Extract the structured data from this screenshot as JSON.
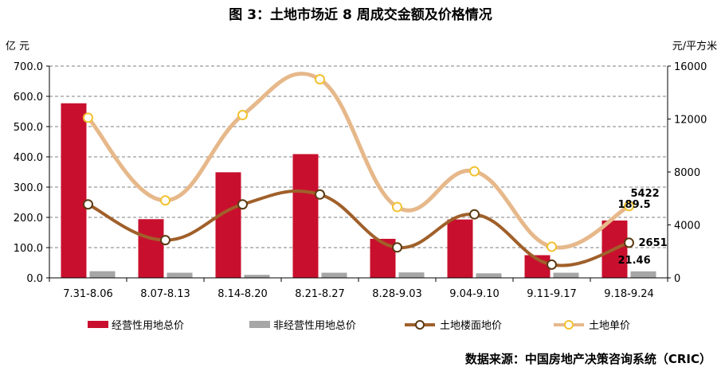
{
  "title": "图 3：土地市场近 8 周成交金额及价格情况",
  "source": "数据来源：中国房地产决策咨询系统（CRIC）",
  "chart_data": {
    "type": "bar",
    "categories": [
      "7.31-8.06",
      "8.07-8.13",
      "8.14-8.20",
      "8.21-8.27",
      "8.28-9.03",
      "9.04-9.10",
      "9.11-9.17",
      "9.18-9.24"
    ],
    "y_left": {
      "label": "亿 元",
      "range": [
        0,
        700
      ],
      "ticks": [
        "0.0",
        "100.0",
        "200.0",
        "300.0",
        "400.0",
        "500.0",
        "600.0",
        "700.0"
      ]
    },
    "y_right": {
      "label": "元/平方米",
      "range": [
        0,
        16000
      ],
      "ticks": [
        "0",
        "4000",
        "8000",
        "12000",
        "16000"
      ]
    },
    "grid": true,
    "legend_position": "bottom",
    "series": [
      {
        "name": "经营性用地总价",
        "type": "bar",
        "axis": "left",
        "color": "#C8102E",
        "values": [
          577,
          194,
          349,
          409,
          129,
          193,
          75,
          189.5
        ]
      },
      {
        "name": "非经营性用地总价",
        "type": "bar",
        "axis": "left",
        "color": "#A6A6A6",
        "values": [
          22,
          17,
          10,
          17,
          18,
          15,
          17,
          21.46
        ]
      },
      {
        "name": "土地楼面地价",
        "type": "line",
        "axis": "right",
        "color": "#A0602A",
        "values": [
          5550,
          2850,
          5550,
          6300,
          2300,
          4800,
          1000,
          2651
        ]
      },
      {
        "name": "土地单价",
        "type": "line",
        "axis": "right",
        "color": "#E6B88A",
        "values": [
          12100,
          5850,
          12300,
          15000,
          5350,
          8050,
          2350,
          5422
        ]
      }
    ],
    "data_labels": [
      {
        "text": "189.5",
        "series": 0,
        "index": 7
      },
      {
        "text": "21.46",
        "series": 1,
        "index": 7
      },
      {
        "text": "2651",
        "series": 2,
        "index": 7
      },
      {
        "text": "5422",
        "series": 3,
        "index": 7
      }
    ]
  }
}
